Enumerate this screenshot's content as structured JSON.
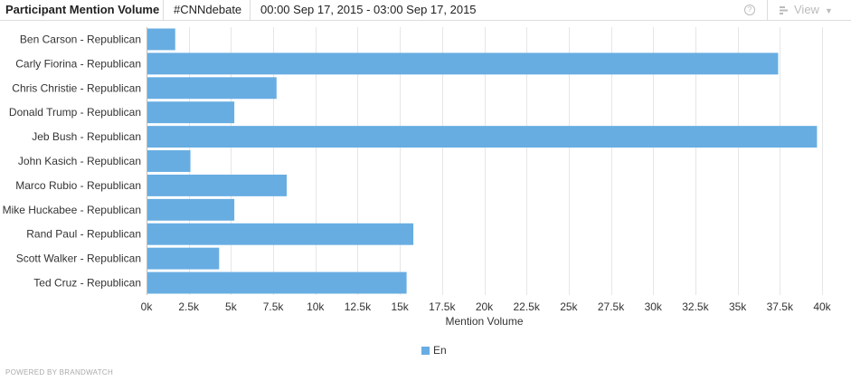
{
  "header": {
    "title": "Participant Mention Volume",
    "query": "#CNNdebate",
    "date_range": "00:00 Sep 17, 2015 - 03:00 Sep 17, 2015",
    "help_icon": "?",
    "view_label": "View"
  },
  "legend": {
    "label": "En"
  },
  "footer": {
    "text": "POWERED BY BRANDWATCH"
  },
  "colors": {
    "bar": "#67ade2",
    "grid": "#e6e6e6",
    "axis": "#333333"
  },
  "chart_data": {
    "type": "bar",
    "orientation": "horizontal",
    "categories": [
      "Ben Carson - Republican",
      "Carly Fiorina - Republican",
      "Chris Christie - Republican",
      "Donald Trump - Republican",
      "Jeb Bush - Republican",
      "John Kasich - Republican",
      "Marco Rubio - Republican",
      "Mike Huckabee - Republican",
      "Rand Paul - Republican",
      "Scott Walker - Republican",
      "Ted Cruz - Republican"
    ],
    "series": [
      {
        "name": "En",
        "values": [
          1700,
          37400,
          7700,
          5200,
          39700,
          2600,
          8300,
          5200,
          15800,
          4300,
          15400
        ]
      }
    ],
    "xlabel": "Mention Volume",
    "ylabel": "",
    "xlim": [
      0,
      40000
    ],
    "xticks": [
      0,
      2500,
      5000,
      7500,
      10000,
      12500,
      15000,
      17500,
      20000,
      22500,
      25000,
      27500,
      30000,
      32500,
      35000,
      37500,
      40000
    ],
    "xtick_labels": [
      "0k",
      "2.5k",
      "5k",
      "7.5k",
      "10k",
      "12.5k",
      "15k",
      "17.5k",
      "20k",
      "22.5k",
      "25k",
      "27.5k",
      "30k",
      "32.5k",
      "35k",
      "37.5k",
      "40k"
    ],
    "grid": true,
    "legend_position": "bottom-center"
  }
}
